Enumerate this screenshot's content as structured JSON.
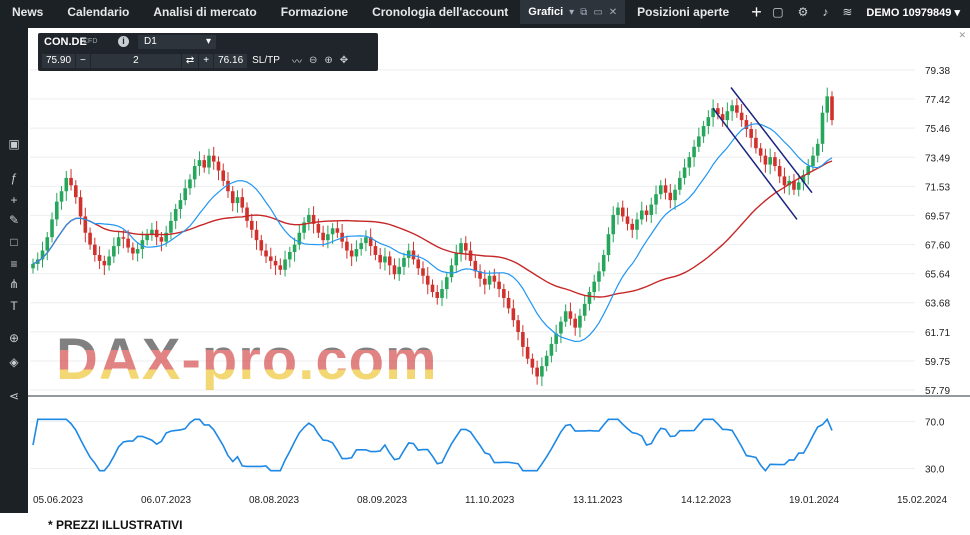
{
  "nav": {
    "items": [
      "News",
      "Calendario",
      "Analisi di mercato",
      "Formazione",
      "Cronologia dell'account"
    ],
    "active_tab": "Grafici",
    "after_tab": "Posizioni aperte",
    "account_label": "DEMO",
    "account_number": "10979849"
  },
  "toolbar": {
    "symbol": "CON.DE",
    "symbol_type": "CFD",
    "timeframe": "D1",
    "bid": "75.90",
    "quantity": "2",
    "ask": "76.16",
    "sltp": "SL/TP"
  },
  "icons": {
    "left_toolbar": [
      "rectangle-select-icon",
      "function-icon",
      "crosshair-icon",
      "pencil-icon",
      "rectangle-icon",
      "fibonacci-icon",
      "pitchfork-icon",
      "text-icon",
      "tools-icon",
      "layers-icon",
      "share-icon"
    ],
    "top_right": [
      "window-icon",
      "settings-icon",
      "bell-icon",
      "wifi-icon",
      "chevron-down-icon"
    ]
  },
  "footer_note": "* PREZZI ILLUSTRATIVI",
  "watermark": "DAX-pro.com",
  "chart_data": [
    {
      "type": "candlestick",
      "title": "",
      "series": [
        {
          "name": "",
          "values": []
        },
        {
          "name": "",
          "values": []
        }
      ],
      "x_tick_labels": [
        "05.06.2023",
        "06.07.2023",
        "08.08.2023",
        "08.09.2023",
        "11.10.2023",
        "13.11.2023",
        "14.12.2023",
        "19.01.2024",
        "15.02.2024"
      ],
      "y_tick_labels": [
        "79.38",
        "77.42",
        "75.46",
        "73.49",
        "71.53",
        "69.57",
        "67.60",
        "65.64",
        "63.68",
        "61.71",
        "59.75",
        "57.79"
      ],
      "ylim": [
        57.79,
        79.38
      ],
      "closes_approx": [
        66.3,
        66.6,
        67.2,
        68.1,
        69.3,
        70.5,
        71.2,
        72.1,
        71.6,
        70.8,
        69.5,
        68.4,
        67.6,
        66.9,
        66.5,
        66.2,
        66.8,
        67.5,
        68.1,
        68.0,
        67.4,
        67.0,
        67.3,
        67.9,
        68.3,
        68.6,
        68.1,
        67.8,
        68.4,
        69.2,
        70.0,
        70.6,
        71.4,
        72.0,
        72.9,
        73.3,
        72.8,
        73.6,
        73.2,
        72.6,
        71.9,
        71.2,
        70.4,
        70.8,
        70.1,
        69.2,
        68.6,
        67.9,
        67.2,
        66.8,
        66.5,
        66.2,
        65.9,
        66.6,
        67.1,
        67.6,
        68.4,
        69.1,
        69.6,
        69.0,
        68.4,
        67.9,
        68.3,
        68.7,
        68.4,
        67.8,
        67.2,
        66.8,
        67.3,
        67.7,
        68.1,
        67.5,
        66.9,
        66.4,
        66.8,
        66.2,
        65.6,
        66.1,
        66.7,
        67.2,
        66.6,
        66.0,
        65.5,
        64.9,
        64.4,
        64.0,
        64.6,
        65.4,
        66.2,
        67.0,
        67.7,
        67.2,
        66.5,
        65.8,
        65.3,
        64.9,
        65.5,
        65.1,
        64.6,
        64.0,
        63.3,
        62.5,
        61.7,
        60.7,
        59.9,
        59.3,
        58.7,
        59.4,
        60.1,
        60.9,
        61.6,
        62.4,
        63.1,
        62.6,
        62.0,
        62.8,
        63.6,
        64.4,
        65.1,
        65.8,
        66.9,
        68.3,
        69.6,
        70.1,
        69.5,
        69.0,
        68.6,
        69.3,
        69.9,
        69.6,
        70.3,
        71.0,
        71.6,
        71.1,
        70.6,
        71.3,
        72.1,
        72.8,
        73.5,
        74.2,
        74.9,
        75.6,
        76.2,
        76.8,
        76.4,
        76.0,
        76.6,
        77.0,
        76.5,
        76.0,
        75.4,
        74.8,
        74.1,
        73.6,
        73.0,
        73.5,
        72.9,
        72.2,
        71.6,
        71.9,
        71.3,
        71.8,
        72.3,
        72.9,
        73.6,
        74.4,
        76.5,
        77.6,
        76.0
      ]
    },
    {
      "type": "line",
      "title": "",
      "series": [
        {
          "name": "",
          "values": []
        }
      ],
      "y_tick_labels": [
        "70.0",
        "30.0"
      ]
    }
  ]
}
